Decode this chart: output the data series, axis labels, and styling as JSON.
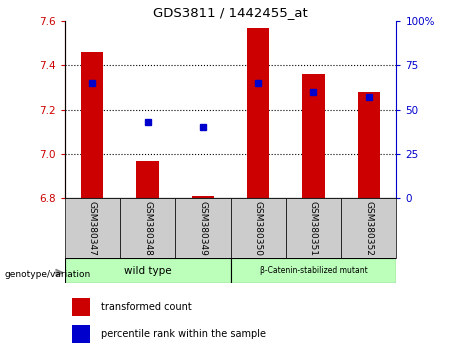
{
  "title": "GDS3811 / 1442455_at",
  "samples": [
    "GSM380347",
    "GSM380348",
    "GSM380349",
    "GSM380350",
    "GSM380351",
    "GSM380352"
  ],
  "transformed_count": [
    7.46,
    6.97,
    6.81,
    7.57,
    7.36,
    7.28
  ],
  "percentile_rank": [
    65,
    43,
    40,
    65,
    60,
    57
  ],
  "bar_bottom": 6.8,
  "ylim": [
    6.8,
    7.6
  ],
  "yticks": [
    6.8,
    7.0,
    7.2,
    7.4,
    7.6
  ],
  "right_yticks": [
    0,
    25,
    50,
    75,
    100
  ],
  "bar_color": "#cc0000",
  "dot_color": "#0000cc",
  "groups": [
    {
      "label": "wild type",
      "start": 0,
      "end": 3,
      "color": "#bbffbb"
    },
    {
      "label": "β-Catenin-stabilized mutant",
      "start": 3,
      "end": 6,
      "color": "#bbffbb"
    }
  ],
  "sample_bg_color": "#cccccc",
  "legend_items": [
    {
      "color": "#cc0000",
      "label": "transformed count"
    },
    {
      "color": "#0000cc",
      "label": "percentile rank within the sample"
    }
  ],
  "grid_linestyle": ":"
}
